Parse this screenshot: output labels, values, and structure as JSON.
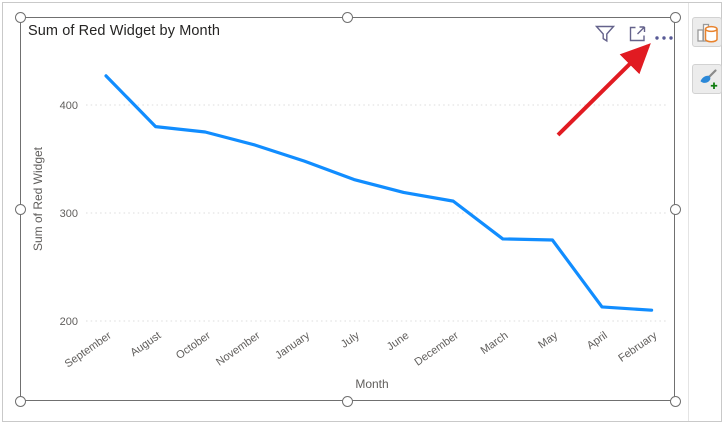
{
  "visual": {
    "title": "Sum of Red Widget by Month",
    "header_icons": [
      {
        "name": "filter-icon",
        "meaning": "Filters"
      },
      {
        "name": "focus-mode-icon",
        "meaning": "Focus mode"
      },
      {
        "name": "more-options-icon",
        "meaning": "More options"
      }
    ],
    "selected": true
  },
  "chart_data": {
    "type": "line",
    "title": "Sum of Red Widget by Month",
    "xlabel": "Month",
    "ylabel": "Sum of Red Widget",
    "categories": [
      "September",
      "August",
      "October",
      "November",
      "January",
      "July",
      "June",
      "December",
      "March",
      "May",
      "April",
      "February"
    ],
    "values": [
      427,
      380,
      375,
      363,
      348,
      331,
      319,
      311,
      276,
      275,
      213,
      210
    ],
    "yticks": [
      200,
      300,
      400
    ],
    "ylim": [
      200,
      440
    ],
    "grid": "horizontal dotted",
    "legend": "none",
    "line_color": "#118DFF"
  },
  "side_panel": {
    "buttons": [
      {
        "name": "build-visual-button",
        "icon": "bar-chart-cylinder-icon"
      },
      {
        "name": "format-visual-button",
        "icon": "paintbrush-plus-icon"
      }
    ]
  },
  "annotation": {
    "type": "arrow",
    "color": "#E11B22",
    "points_to": "more-options-icon"
  },
  "colors": {
    "line": "#118DFF",
    "grid": "#DCDCDC",
    "axis_text": "#605E5C",
    "title_text": "#252423",
    "header_icon": "#64628B",
    "selection": "#707070",
    "arrow": "#E11B22",
    "cylinder_orange": "#E8832E",
    "brush_blue": "#2B88D8",
    "plus_green": "#107C10"
  }
}
